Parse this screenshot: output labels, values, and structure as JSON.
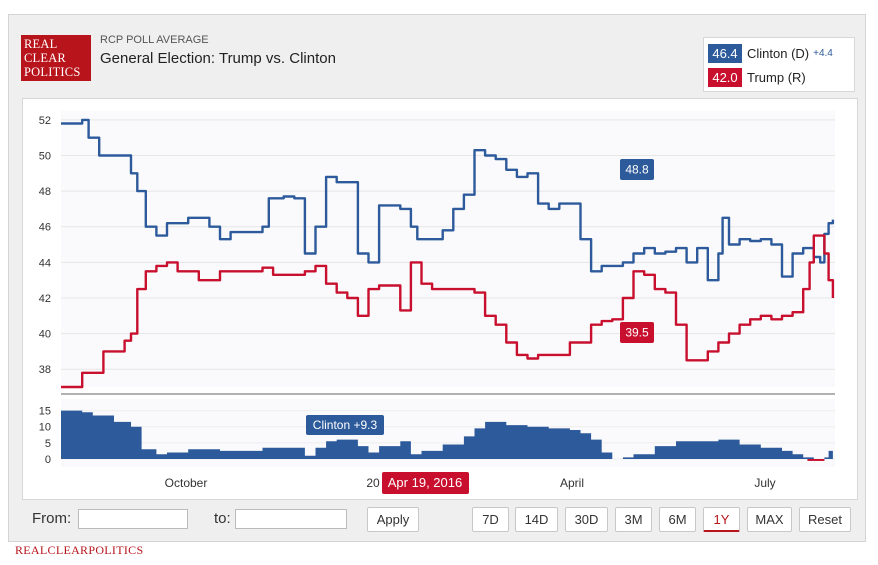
{
  "header": {
    "logo_lines": [
      "REAL",
      "CLEAR",
      "POLITICS"
    ],
    "subtitle": "RCP POLL AVERAGE",
    "title": "General Election: Trump vs. Clinton"
  },
  "legend": [
    {
      "value": "46.4",
      "name": "Clinton (D)",
      "spread": "+4.4",
      "color": "#2d5a9b"
    },
    {
      "value": "42.0",
      "name": "Trump (R)",
      "spread": "",
      "color": "#c8102e"
    }
  ],
  "chart_data": {
    "type": "line",
    "title": "General Election: Trump vs. Clinton",
    "ylim": [
      37,
      52.5
    ],
    "yticks": [
      "52",
      "50",
      "48",
      "46",
      "44",
      "42",
      "40",
      "38"
    ],
    "xlim": [
      0,
      365
    ],
    "series": [
      {
        "name": "Clinton (D)",
        "color": "#2d5a9b",
        "x": [
          0,
          10,
          13,
          18,
          20,
          33,
          36,
          40,
          45,
          50,
          55,
          60,
          70,
          75,
          80,
          90,
          95,
          98,
          100,
          105,
          110,
          115,
          120,
          125,
          130,
          140,
          145,
          150,
          160,
          165,
          168,
          170,
          175,
          180,
          185,
          190,
          195,
          200,
          205,
          210,
          215,
          220,
          225,
          230,
          235,
          240,
          245,
          250,
          255,
          260,
          265,
          270,
          275,
          280,
          285,
          290,
          295,
          300,
          305,
          310,
          312,
          315,
          320,
          325,
          330,
          335,
          340,
          345,
          350,
          355,
          358,
          360,
          362,
          364
        ],
        "y": [
          51.8,
          52.0,
          51.0,
          50.0,
          50.0,
          49.0,
          48.0,
          46.0,
          45.5,
          46.2,
          46.2,
          46.5,
          46.0,
          45.3,
          45.7,
          45.7,
          46.0,
          47.6,
          47.6,
          47.7,
          47.6,
          44.5,
          46.0,
          48.8,
          48.5,
          44.5,
          44.0,
          47.2,
          47.0,
          46.0,
          45.3,
          45.3,
          45.3,
          45.8,
          47.0,
          47.8,
          50.3,
          50.0,
          49.8,
          49.2,
          48.8,
          49.0,
          47.3,
          47.0,
          47.3,
          47.3,
          45.3,
          43.5,
          43.8,
          43.8,
          44.0,
          44.5,
          44.8,
          44.5,
          44.6,
          44.8,
          44.0,
          44.8,
          43.0,
          44.5,
          46.5,
          45.0,
          45.3,
          45.2,
          45.3,
          45.0,
          43.2,
          44.5,
          44.8,
          44.3,
          44.0,
          45.6,
          46.2,
          46.4
        ]
      },
      {
        "name": "Trump (R)",
        "color": "#c8102e",
        "x": [
          0,
          5,
          10,
          15,
          20,
          30,
          33,
          36,
          40,
          45,
          50,
          55,
          65,
          70,
          75,
          80,
          90,
          95,
          100,
          105,
          110,
          115,
          120,
          125,
          130,
          135,
          140,
          145,
          150,
          160,
          165,
          170,
          175,
          180,
          185,
          190,
          195,
          200,
          205,
          210,
          215,
          220,
          225,
          230,
          235,
          240,
          245,
          250,
          255,
          260,
          265,
          270,
          275,
          280,
          285,
          290,
          295,
          300,
          305,
          310,
          315,
          320,
          325,
          330,
          335,
          340,
          345,
          350,
          353,
          355,
          358,
          360,
          362,
          364
        ],
        "y": [
          37.0,
          37.0,
          37.8,
          37.8,
          39.0,
          39.6,
          40.0,
          42.5,
          43.5,
          43.8,
          44.0,
          43.5,
          43.0,
          43.0,
          43.5,
          43.5,
          43.5,
          43.7,
          43.3,
          43.3,
          43.3,
          43.5,
          43.8,
          42.8,
          42.3,
          42.0,
          41.0,
          42.5,
          42.7,
          41.3,
          44.0,
          42.8,
          42.5,
          42.5,
          42.5,
          42.5,
          42.3,
          41.0,
          40.5,
          39.5,
          38.8,
          38.6,
          38.8,
          38.8,
          38.8,
          39.5,
          39.5,
          40.5,
          40.7,
          40.8,
          42.0,
          43.5,
          43.3,
          42.5,
          42.3,
          40.5,
          38.5,
          38.5,
          39.0,
          39.5,
          40.0,
          40.5,
          40.8,
          41.0,
          40.8,
          41.0,
          41.2,
          42.5,
          44.0,
          45.5,
          45.5,
          44.5,
          43.0,
          42.0
        ]
      },
      {
        "name": "Spread",
        "color": "#2d5a9b",
        "x": [
          0,
          10,
          15,
          25,
          33,
          38,
          45,
          50,
          60,
          70,
          75,
          85,
          95,
          100,
          110,
          115,
          120,
          125,
          130,
          140,
          145,
          150,
          160,
          165,
          170,
          180,
          190,
          195,
          200,
          210,
          220,
          230,
          240,
          245,
          250,
          255,
          260,
          265,
          270,
          280,
          290,
          300,
          310,
          320,
          330,
          340,
          345,
          350,
          355,
          358,
          360,
          362,
          364
        ],
        "y": [
          15.0,
          14.5,
          13.5,
          11.5,
          10.0,
          3.0,
          1.5,
          2.0,
          3.0,
          3.0,
          2.5,
          2.5,
          3.5,
          3.5,
          3.5,
          1.0,
          3.5,
          5.5,
          6.0,
          4.0,
          2.0,
          4.0,
          5.5,
          1.5,
          2.5,
          4.5,
          7.0,
          9.5,
          11.5,
          10.5,
          10.0,
          9.5,
          9.0,
          8.0,
          6.0,
          2.0,
          0.0,
          0.5,
          1.5,
          4.0,
          5.5,
          5.5,
          6.0,
          4.5,
          3.5,
          2.5,
          1.5,
          0.5,
          -0.5,
          -0.5,
          0.5,
          2.5,
          4.4
        ]
      }
    ],
    "spread_yticks": [
      "15",
      "10",
      "5",
      "0"
    ],
    "spread_ylim": [
      0,
      15.5
    ],
    "month_labels": [
      "October",
      "20",
      "April",
      "July"
    ],
    "callouts": {
      "clinton": "48.8",
      "trump": "39.5",
      "spread": "Clinton +9.3",
      "date": "Apr 19, 2016"
    }
  },
  "controls": {
    "from_label": "From:",
    "to_label": "to:",
    "from_value": "",
    "to_value": "",
    "apply": "Apply",
    "ranges": [
      "7D",
      "14D",
      "30D",
      "3M",
      "6M",
      "1Y",
      "MAX",
      "Reset"
    ],
    "active_range": "1Y"
  },
  "footer": "REALCLEARPOLITICS"
}
